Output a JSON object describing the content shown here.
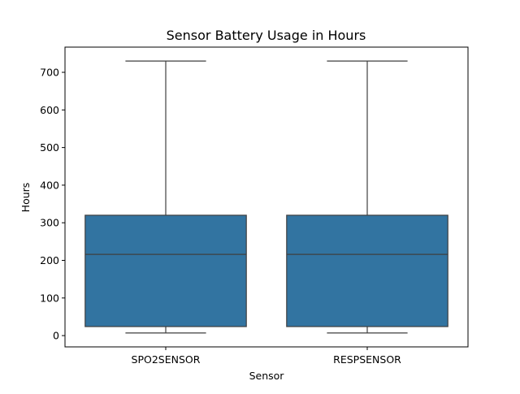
{
  "chart_data": {
    "type": "box",
    "title": "Sensor Battery Usage in Hours",
    "xlabel": "Sensor",
    "ylabel": "Hours",
    "categories": [
      "SPO2SENSOR",
      "RESPSENSOR"
    ],
    "boxes": [
      {
        "category": "SPO2SENSOR",
        "whisker_low": 7,
        "q1": 24,
        "median": 216,
        "q3": 320,
        "whisker_high": 730
      },
      {
        "category": "RESPSENSOR",
        "whisker_low": 7,
        "q1": 24,
        "median": 216,
        "q3": 320,
        "whisker_high": 730
      }
    ],
    "yticks": [
      0,
      100,
      200,
      300,
      400,
      500,
      600,
      700
    ],
    "ylim": [
      -30,
      767
    ],
    "grid": false,
    "colors": {
      "box_fill": "#3274a1",
      "line": "#3f3f3f",
      "axes": "#000000"
    }
  }
}
